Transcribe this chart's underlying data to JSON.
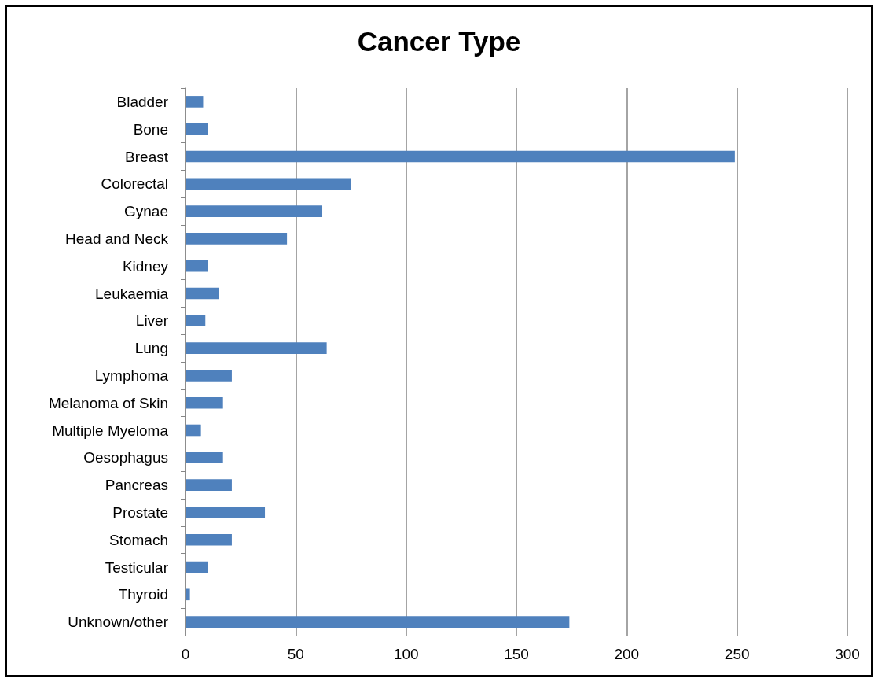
{
  "chart_data": {
    "type": "bar",
    "title": "Cancer Type",
    "orientation": "horizontal",
    "categories": [
      "Bladder",
      "Bone",
      "Breast",
      "Colorectal",
      "Gynae",
      "Head and Neck",
      "Kidney",
      "Leukaemia",
      "Liver",
      "Lung",
      "Lymphoma",
      "Melanoma of Skin",
      "Multiple Myeloma",
      "Oesophagus",
      "Pancreas",
      "Prostate",
      "Stomach",
      "Testicular",
      "Thyroid",
      "Unknown/other"
    ],
    "values": [
      8,
      10,
      249,
      75,
      62,
      46,
      10,
      15,
      9,
      64,
      21,
      17,
      7,
      17,
      21,
      36,
      21,
      10,
      2,
      174
    ],
    "color": "#4f81bd",
    "xlim": [
      0,
      300
    ],
    "xticks": [
      0,
      50,
      100,
      150,
      200,
      250,
      300
    ],
    "grid": "x"
  }
}
